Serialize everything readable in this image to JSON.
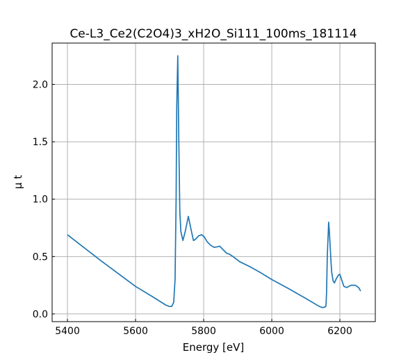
{
  "chart_data": {
    "type": "line",
    "title": "Ce-L3_Ce2(C2O4)3_xH2O_Si111_100ms_181114",
    "xlabel": "Energy [eV]",
    "ylabel": "μ t",
    "xlim": [
      5355,
      6304
    ],
    "ylim": [
      -0.067,
      2.36
    ],
    "xticks": [
      5400,
      5600,
      5800,
      6000,
      6200
    ],
    "yticks": [
      0.0,
      0.5,
      1.0,
      1.5,
      2.0
    ],
    "xtick_labels": [
      "5400",
      "5600",
      "5800",
      "6000",
      "6200"
    ],
    "ytick_labels": [
      "0.0",
      "0.5",
      "1.0",
      "1.5",
      "2.0"
    ],
    "grid": true,
    "color": "#1f77b4",
    "series": [
      {
        "x": [
          5400,
          5500,
          5600,
          5650,
          5690,
          5700,
          5706,
          5712,
          5716,
          5719,
          5721,
          5724,
          5727,
          5730,
          5733,
          5739,
          5746,
          5755,
          5762,
          5770,
          5776,
          5785,
          5794,
          5802,
          5810,
          5820,
          5831,
          5840,
          5847,
          5857,
          5867,
          5876,
          5886,
          5906,
          5937,
          5970,
          6000,
          6050,
          6100,
          6140,
          6149,
          6156,
          6159,
          6161,
          6163,
          6165,
          6167,
          6169,
          6171,
          6174,
          6176,
          6180,
          6184,
          6190,
          6196,
          6200,
          6206,
          6212,
          6220,
          6233,
          6245,
          6255,
          6261
        ],
        "y": [
          0.69,
          0.46,
          0.24,
          0.15,
          0.075,
          0.065,
          0.065,
          0.1,
          0.3,
          1.0,
          1.8,
          2.25,
          1.5,
          0.9,
          0.72,
          0.64,
          0.72,
          0.85,
          0.75,
          0.64,
          0.65,
          0.68,
          0.69,
          0.67,
          0.63,
          0.6,
          0.58,
          0.585,
          0.59,
          0.56,
          0.53,
          0.52,
          0.5,
          0.455,
          0.41,
          0.355,
          0.3,
          0.22,
          0.135,
          0.065,
          0.055,
          0.06,
          0.07,
          0.19,
          0.5,
          0.65,
          0.8,
          0.72,
          0.62,
          0.45,
          0.36,
          0.29,
          0.27,
          0.31,
          0.34,
          0.345,
          0.29,
          0.24,
          0.23,
          0.25,
          0.25,
          0.23,
          0.2
        ]
      }
    ]
  }
}
